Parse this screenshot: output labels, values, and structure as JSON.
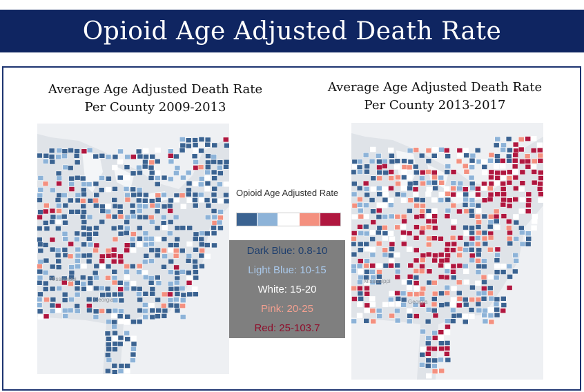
{
  "header": {
    "title": "Opioid Age Adjusted Death Rate"
  },
  "maps": [
    {
      "title_line1": "Average Age Adjusted Death Rate",
      "title_line2": "Per County 2009-2013"
    },
    {
      "title_line1": "Average Age Adjusted Death Rate",
      "title_line2": "Per County 2013-2017"
    }
  ],
  "legend": {
    "title": "Opioid Age Adjusted Rate",
    "colors": [
      "#3b6391",
      "#8db3d8",
      "#ffffff",
      "#f4907f",
      "#b0173f"
    ]
  },
  "key": [
    {
      "label": "Dark Blue: 0.8-10",
      "color": "#1f3f6e"
    },
    {
      "label": "Light Blue: 10-15",
      "color": "#a9c8ea"
    },
    {
      "label": "White: 15-20",
      "color": "#ffffff"
    },
    {
      "label": "Pink: 20-25",
      "color": "#f4a090"
    },
    {
      "label": "Red: 25-103.7",
      "color": "#8e0f2c"
    }
  ],
  "map_labels": [
    "Mississippi",
    "Georgia"
  ]
}
